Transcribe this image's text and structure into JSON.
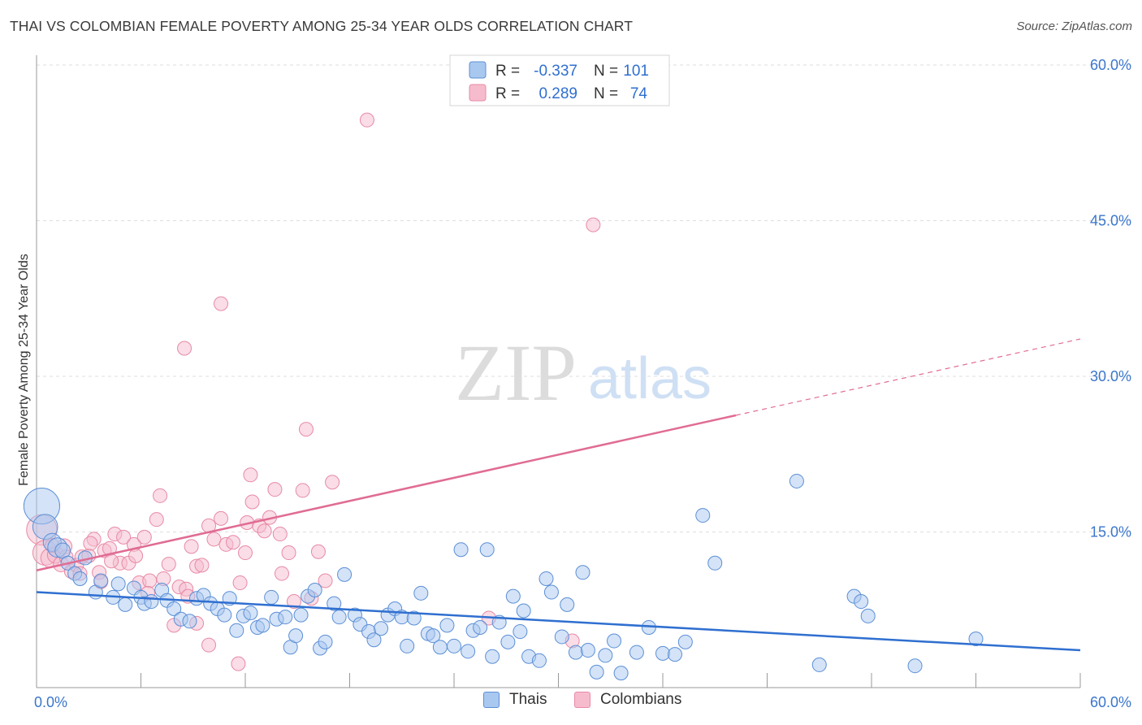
{
  "title": "THAI VS COLOMBIAN FEMALE POVERTY AMONG 25-34 YEAR OLDS CORRELATION CHART",
  "source": "Source: ZipAtlas.com",
  "watermark": {
    "zip": "ZIP",
    "atlas": "atlas"
  },
  "colors": {
    "thai_fill": "#a9c8ef",
    "thai_stroke": "#5b8fd6",
    "thai_line": "#2f6fd0",
    "col_fill": "#f6bccd",
    "col_stroke": "#e78aa6",
    "col_line": "#e06c93",
    "grid": "#dedede",
    "tick_label": "#3a76cc",
    "axis": "#999999"
  },
  "legend_top": {
    "rows": [
      {
        "series": "thai",
        "r_label": "R =",
        "r_value": "-0.337",
        "n_label": "N =",
        "n_value": "101"
      },
      {
        "series": "col",
        "r_label": "R =",
        "r_value": "0.289",
        "n_label": "N =",
        "n_value": "74"
      }
    ]
  },
  "legend_bottom": [
    {
      "series": "thai",
      "label": "Thais"
    },
    {
      "series": "col",
      "label": "Colombians"
    }
  ],
  "chart_data": {
    "type": "scatter",
    "xlabel": "",
    "ylabel": "Female Poverty Among 25-34 Year Olds",
    "xlim": [
      0,
      60
    ],
    "ylim": [
      0,
      60
    ],
    "x_tick_labels": [
      {
        "value": 0,
        "label": "0.0%"
      },
      {
        "value": 60,
        "label": "60.0%"
      }
    ],
    "y_tick_labels": [
      {
        "value": 15,
        "label": "15.0%"
      },
      {
        "value": 30,
        "label": "30.0%"
      },
      {
        "value": 45,
        "label": "45.0%"
      },
      {
        "value": 60,
        "label": "60.0%"
      }
    ],
    "x_minor_ticks": [
      6,
      12,
      18,
      24,
      30,
      36,
      42,
      48,
      54,
      60
    ],
    "grid": true,
    "series": [
      {
        "name": "Thais",
        "key": "thai",
        "trend": {
          "x": [
            0,
            60
          ],
          "y": [
            9.2,
            3.6
          ],
          "solid_to": 60
        },
        "points": [
          [
            0.3,
            17.5,
            2.6
          ],
          [
            0.5,
            15.5,
            1.8
          ],
          [
            0.9,
            14.0,
            1.3
          ],
          [
            1.2,
            13.5,
            1.4
          ],
          [
            1.5,
            13.2,
            1.1
          ],
          [
            1.8,
            12.0,
            1.0
          ],
          [
            2.2,
            11.0,
            1.0
          ],
          [
            2.5,
            10.5,
            1.0
          ],
          [
            2.8,
            12.5,
            1.0
          ],
          [
            3.4,
            9.2,
            1.0
          ],
          [
            3.7,
            10.3,
            1.0
          ],
          [
            4.4,
            8.7,
            1.0
          ],
          [
            4.7,
            10.0,
            1.0
          ],
          [
            5.1,
            8.0,
            1.0
          ],
          [
            5.6,
            9.6,
            1.0
          ],
          [
            6.0,
            8.7,
            1.0
          ],
          [
            6.2,
            8.1,
            1.0
          ],
          [
            6.6,
            8.3,
            1.0
          ],
          [
            7.2,
            9.4,
            1.0
          ],
          [
            7.5,
            8.4,
            1.0
          ],
          [
            7.9,
            7.6,
            1.0
          ],
          [
            8.3,
            6.6,
            1.0
          ],
          [
            8.8,
            6.4,
            1.0
          ],
          [
            9.2,
            8.6,
            1.0
          ],
          [
            9.6,
            8.9,
            1.0
          ],
          [
            10.0,
            8.1,
            1.0
          ],
          [
            10.4,
            7.6,
            1.0
          ],
          [
            10.8,
            7.0,
            1.0
          ],
          [
            11.1,
            8.6,
            1.0
          ],
          [
            11.5,
            5.5,
            1.0
          ],
          [
            11.9,
            6.9,
            1.0
          ],
          [
            12.3,
            7.2,
            1.0
          ],
          [
            12.7,
            5.8,
            1.0
          ],
          [
            13.0,
            6.0,
            1.0
          ],
          [
            13.5,
            8.7,
            1.0
          ],
          [
            13.8,
            6.6,
            1.0
          ],
          [
            14.3,
            6.8,
            1.0
          ],
          [
            14.6,
            3.9,
            1.0
          ],
          [
            14.9,
            5.0,
            1.0
          ],
          [
            15.2,
            7.0,
            1.0
          ],
          [
            15.6,
            8.8,
            1.0
          ],
          [
            16.0,
            9.4,
            1.0
          ],
          [
            16.3,
            3.8,
            1.0
          ],
          [
            16.6,
            4.4,
            1.0
          ],
          [
            17.1,
            8.1,
            1.0
          ],
          [
            17.4,
            6.8,
            1.0
          ],
          [
            17.7,
            10.9,
            1.0
          ],
          [
            18.3,
            7.0,
            1.0
          ],
          [
            18.6,
            6.1,
            1.0
          ],
          [
            19.1,
            5.4,
            1.0
          ],
          [
            19.4,
            4.6,
            1.0
          ],
          [
            19.8,
            5.7,
            1.0
          ],
          [
            20.2,
            7.0,
            1.0
          ],
          [
            20.6,
            7.6,
            1.0
          ],
          [
            21.0,
            6.8,
            1.0
          ],
          [
            21.3,
            4.0,
            1.0
          ],
          [
            21.7,
            6.7,
            1.0
          ],
          [
            22.1,
            9.1,
            1.0
          ],
          [
            22.5,
            5.2,
            1.0
          ],
          [
            22.8,
            5.0,
            1.0
          ],
          [
            23.2,
            3.9,
            1.0
          ],
          [
            23.6,
            6.0,
            1.0
          ],
          [
            24.0,
            4.0,
            1.0
          ],
          [
            24.4,
            13.3,
            1.0
          ],
          [
            24.8,
            3.5,
            1.0
          ],
          [
            25.1,
            5.5,
            1.0
          ],
          [
            25.5,
            5.8,
            1.0
          ],
          [
            25.9,
            13.3,
            1.0
          ],
          [
            26.2,
            3.0,
            1.0
          ],
          [
            26.6,
            6.3,
            1.0
          ],
          [
            27.1,
            4.4,
            1.0
          ],
          [
            27.4,
            8.8,
            1.0
          ],
          [
            27.8,
            5.4,
            1.0
          ],
          [
            28.0,
            7.4,
            1.0
          ],
          [
            28.3,
            3.0,
            1.0
          ],
          [
            28.9,
            2.6,
            1.0
          ],
          [
            29.3,
            10.5,
            1.0
          ],
          [
            29.6,
            9.2,
            1.0
          ],
          [
            30.2,
            4.9,
            1.0
          ],
          [
            30.5,
            8.0,
            1.0
          ],
          [
            31.0,
            3.4,
            1.0
          ],
          [
            31.4,
            11.1,
            1.0
          ],
          [
            31.7,
            3.6,
            1.0
          ],
          [
            32.2,
            1.5,
            1.0
          ],
          [
            32.7,
            3.1,
            1.0
          ],
          [
            33.2,
            4.5,
            1.0
          ],
          [
            33.6,
            1.4,
            1.0
          ],
          [
            34.5,
            3.4,
            1.0
          ],
          [
            35.2,
            5.8,
            1.0
          ],
          [
            36.0,
            3.3,
            1.0
          ],
          [
            36.7,
            3.2,
            1.0
          ],
          [
            37.3,
            4.4,
            1.0
          ],
          [
            38.3,
            16.6,
            1.0
          ],
          [
            39.0,
            12.0,
            1.0
          ],
          [
            43.7,
            19.9,
            1.0
          ],
          [
            45.0,
            2.2,
            1.0
          ],
          [
            47.0,
            8.8,
            1.0
          ],
          [
            47.4,
            8.3,
            1.0
          ],
          [
            47.8,
            6.9,
            1.0
          ],
          [
            54.0,
            4.7,
            1.0
          ],
          [
            50.5,
            2.1,
            1.0
          ]
        ]
      },
      {
        "name": "Colombians",
        "key": "col",
        "trend": {
          "x": [
            0,
            60
          ],
          "y": [
            11.3,
            33.6
          ],
          "solid_to": 40.2
        },
        "points": [
          [
            0.3,
            15.2,
            2.2
          ],
          [
            0.5,
            13.0,
            1.8
          ],
          [
            0.8,
            12.5,
            1.4
          ],
          [
            1.1,
            12.8,
            1.2
          ],
          [
            1.4,
            11.9,
            1.1
          ],
          [
            1.6,
            13.6,
            1.1
          ],
          [
            2.0,
            11.2,
            1.0
          ],
          [
            2.3,
            11.8,
            1.0
          ],
          [
            2.6,
            12.6,
            1.0
          ],
          [
            3.0,
            12.7,
            1.0
          ],
          [
            3.3,
            14.3,
            1.0
          ],
          [
            3.6,
            11.1,
            1.0
          ],
          [
            3.9,
            13.2,
            1.0
          ],
          [
            4.2,
            13.4,
            1.0
          ],
          [
            4.5,
            14.8,
            1.0
          ],
          [
            4.8,
            12.0,
            1.0
          ],
          [
            5.0,
            14.5,
            1.0
          ],
          [
            5.3,
            12.0,
            1.0
          ],
          [
            5.6,
            13.8,
            1.0
          ],
          [
            5.9,
            10.1,
            1.0
          ],
          [
            6.2,
            14.5,
            1.0
          ],
          [
            6.5,
            10.3,
            1.0
          ],
          [
            6.9,
            16.2,
            1.0
          ],
          [
            7.3,
            10.5,
            1.0
          ],
          [
            7.6,
            11.9,
            1.0
          ],
          [
            7.9,
            6.0,
            1.0
          ],
          [
            8.2,
            9.7,
            1.0
          ],
          [
            8.6,
            9.5,
            1.0
          ],
          [
            8.9,
            13.6,
            1.0
          ],
          [
            9.2,
            11.7,
            1.0
          ],
          [
            9.5,
            11.8,
            1.0
          ],
          [
            9.9,
            15.6,
            1.0
          ],
          [
            10.2,
            14.3,
            1.0
          ],
          [
            10.6,
            16.3,
            1.0
          ],
          [
            10.9,
            13.8,
            1.0
          ],
          [
            11.3,
            14.0,
            1.0
          ],
          [
            11.7,
            10.1,
            1.0
          ],
          [
            12.1,
            15.9,
            1.0
          ],
          [
            12.4,
            17.9,
            1.0
          ],
          [
            12.8,
            15.6,
            1.0
          ],
          [
            13.1,
            15.1,
            1.0
          ],
          [
            13.4,
            16.4,
            1.0
          ],
          [
            13.7,
            19.1,
            1.0
          ],
          [
            14.1,
            11.0,
            1.0
          ],
          [
            14.5,
            13.0,
            1.0
          ],
          [
            14.8,
            8.3,
            1.0
          ],
          [
            15.3,
            19.0,
            1.0
          ],
          [
            15.8,
            8.6,
            1.0
          ],
          [
            16.2,
            13.1,
            1.0
          ],
          [
            16.6,
            10.3,
            1.0
          ],
          [
            17.0,
            19.8,
            1.0
          ],
          [
            7.1,
            18.5,
            1.0
          ],
          [
            8.5,
            32.7,
            1.0
          ],
          [
            10.6,
            37.0,
            1.0
          ],
          [
            12.3,
            20.5,
            1.0
          ],
          [
            15.5,
            24.9,
            1.0
          ],
          [
            19.0,
            54.7,
            1.0
          ],
          [
            32.0,
            44.6,
            1.0
          ],
          [
            3.1,
            13.9,
            1.0
          ],
          [
            5.7,
            12.7,
            1.0
          ],
          [
            9.9,
            4.1,
            1.0
          ],
          [
            11.6,
            2.3,
            1.0
          ],
          [
            9.2,
            6.2,
            1.0
          ],
          [
            14.0,
            14.8,
            1.0
          ],
          [
            0.9,
            13.7,
            1.0
          ],
          [
            1.7,
            12.6,
            1.0
          ],
          [
            26.0,
            6.7,
            1.0
          ],
          [
            30.8,
            4.5,
            1.0
          ],
          [
            3.7,
            10.2,
            1.0
          ],
          [
            6.4,
            9.1,
            1.0
          ],
          [
            2.5,
            11.0,
            1.0
          ],
          [
            4.3,
            12.2,
            1.0
          ],
          [
            8.7,
            8.8,
            1.0
          ],
          [
            12.0,
            13.0,
            1.0
          ]
        ]
      }
    ]
  }
}
